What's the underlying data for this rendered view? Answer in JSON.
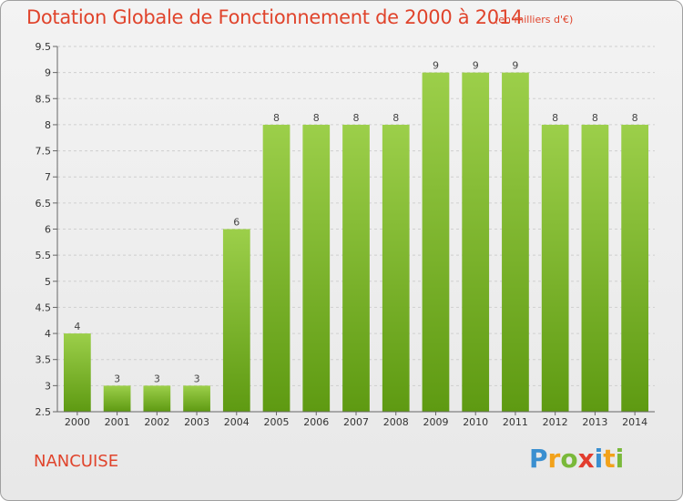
{
  "title": "Dotation Globale de Fonctionnement de 2000 à 2014",
  "subtitle": "(en milliers d'€)",
  "commune": "NANCUISE",
  "logo": {
    "letters": [
      "P",
      "r",
      "o",
      "x",
      "i",
      "t",
      "i"
    ],
    "colors": [
      "#3a8fd0",
      "#f2a21b",
      "#7ab93a",
      "#e23d2e",
      "#3a8fd0",
      "#f2a21b",
      "#7ab93a"
    ]
  },
  "colors": {
    "bar_top": "#9ccf4a",
    "bar_bottom": "#5e9a12",
    "grid": "#cfcfcf",
    "title": "#e0442c"
  },
  "chart_data": {
    "type": "bar",
    "title": "Dotation Globale de Fonctionnement de 2000 à 2014",
    "xlabel": "",
    "ylabel": "",
    "categories": [
      "2000",
      "2001",
      "2002",
      "2003",
      "2004",
      "2005",
      "2006",
      "2007",
      "2008",
      "2009",
      "2010",
      "2011",
      "2012",
      "2013",
      "2014"
    ],
    "values": [
      4,
      3,
      3,
      3,
      6,
      8,
      8,
      8,
      8,
      9,
      9,
      9,
      8,
      8,
      8
    ],
    "ylim": [
      2.5,
      9.5
    ],
    "yticks": [
      "2.5",
      "3",
      "3.5",
      "4",
      "4.5",
      "5",
      "5.5",
      "6",
      "6.5",
      "7",
      "7.5",
      "8",
      "8.5",
      "9",
      "9.5"
    ],
    "grid": true
  }
}
